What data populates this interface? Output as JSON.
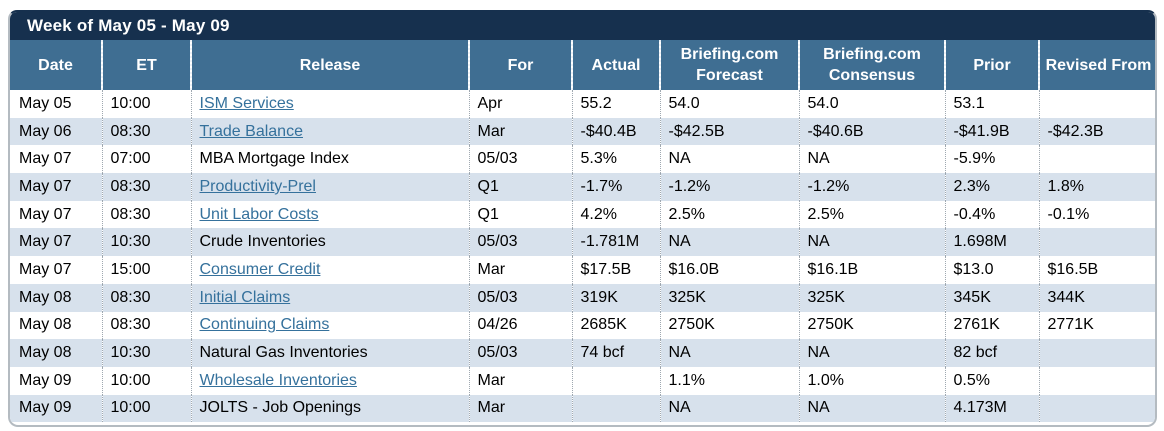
{
  "title": "Week of May 05 - May 09",
  "columns": [
    "Date",
    "ET",
    "Release",
    "For",
    "Actual",
    "Briefing.com Forecast",
    "Briefing.com Consensus",
    "Prior",
    "Revised From"
  ],
  "rows": [
    {
      "date": "May 05",
      "et": "10:00",
      "release": "ISM Services",
      "release_is_link": true,
      "for": "Apr",
      "actual": "55.2",
      "briefing_forecast": "54.0",
      "briefing_consensus": "54.0",
      "prior": "53.1",
      "revised_from": ""
    },
    {
      "date": "May 06",
      "et": "08:30",
      "release": "Trade Balance",
      "release_is_link": true,
      "for": "Mar",
      "actual": "-$40.4B",
      "briefing_forecast": "-$42.5B",
      "briefing_consensus": "-$40.6B",
      "prior": "-$41.9B",
      "revised_from": "-$42.3B"
    },
    {
      "date": "May 07",
      "et": "07:00",
      "release": "MBA Mortgage Index",
      "release_is_link": false,
      "for": "05/03",
      "actual": "5.3%",
      "briefing_forecast": "NA",
      "briefing_consensus": "NA",
      "prior": "-5.9%",
      "revised_from": ""
    },
    {
      "date": "May 07",
      "et": "08:30",
      "release": "Productivity-Prel",
      "release_is_link": true,
      "for": "Q1",
      "actual": "-1.7%",
      "briefing_forecast": "-1.2%",
      "briefing_consensus": "-1.2%",
      "prior": "2.3%",
      "revised_from": "1.8%"
    },
    {
      "date": "May 07",
      "et": "08:30",
      "release": "Unit Labor Costs",
      "release_is_link": true,
      "for": "Q1",
      "actual": "4.2%",
      "briefing_forecast": "2.5%",
      "briefing_consensus": "2.5%",
      "prior": "-0.4%",
      "revised_from": "-0.1%"
    },
    {
      "date": "May 07",
      "et": "10:30",
      "release": "Crude Inventories",
      "release_is_link": false,
      "for": "05/03",
      "actual": "-1.781M",
      "briefing_forecast": "NA",
      "briefing_consensus": "NA",
      "prior": "1.698M",
      "revised_from": ""
    },
    {
      "date": "May 07",
      "et": "15:00",
      "release": "Consumer Credit",
      "release_is_link": true,
      "for": "Mar",
      "actual": "$17.5B",
      "briefing_forecast": "$16.0B",
      "briefing_consensus": "$16.1B",
      "prior": "$13.0",
      "revised_from": "$16.5B"
    },
    {
      "date": "May 08",
      "et": "08:30",
      "release": "Initial Claims",
      "release_is_link": true,
      "for": "05/03",
      "actual": "319K",
      "briefing_forecast": "325K",
      "briefing_consensus": "325K",
      "prior": "345K",
      "revised_from": "344K"
    },
    {
      "date": "May 08",
      "et": "08:30",
      "release": "Continuing Claims",
      "release_is_link": true,
      "for": "04/26",
      "actual": "2685K",
      "briefing_forecast": "2750K",
      "briefing_consensus": "2750K",
      "prior": "2761K",
      "revised_from": "2771K"
    },
    {
      "date": "May 08",
      "et": "10:30",
      "release": "Natural Gas Inventories",
      "release_is_link": false,
      "for": "05/03",
      "actual": "74 bcf",
      "briefing_forecast": "NA",
      "briefing_consensus": "NA",
      "prior": "82 bcf",
      "revised_from": ""
    },
    {
      "date": "May 09",
      "et": "10:00",
      "release": "Wholesale Inventories",
      "release_is_link": true,
      "for": "Mar",
      "actual": "",
      "briefing_forecast": "1.1%",
      "briefing_consensus": "1.0%",
      "prior": "0.5%",
      "revised_from": ""
    },
    {
      "date": "May 09",
      "et": "10:00",
      "release": "JOLTS - Job Openings",
      "release_is_link": false,
      "for": "Mar",
      "actual": "",
      "briefing_forecast": "NA",
      "briefing_consensus": "NA",
      "prior": "4.173M",
      "revised_from": ""
    }
  ],
  "colors": {
    "title_bar_bg": "#16304E",
    "header_bg": "#3F6E92",
    "header_text": "#FFFFFF",
    "row_alt_bg": "#D7E1EC",
    "link_color": "#35719C",
    "text_color": "#000000",
    "frame_border": "#B4BBC1"
  }
}
